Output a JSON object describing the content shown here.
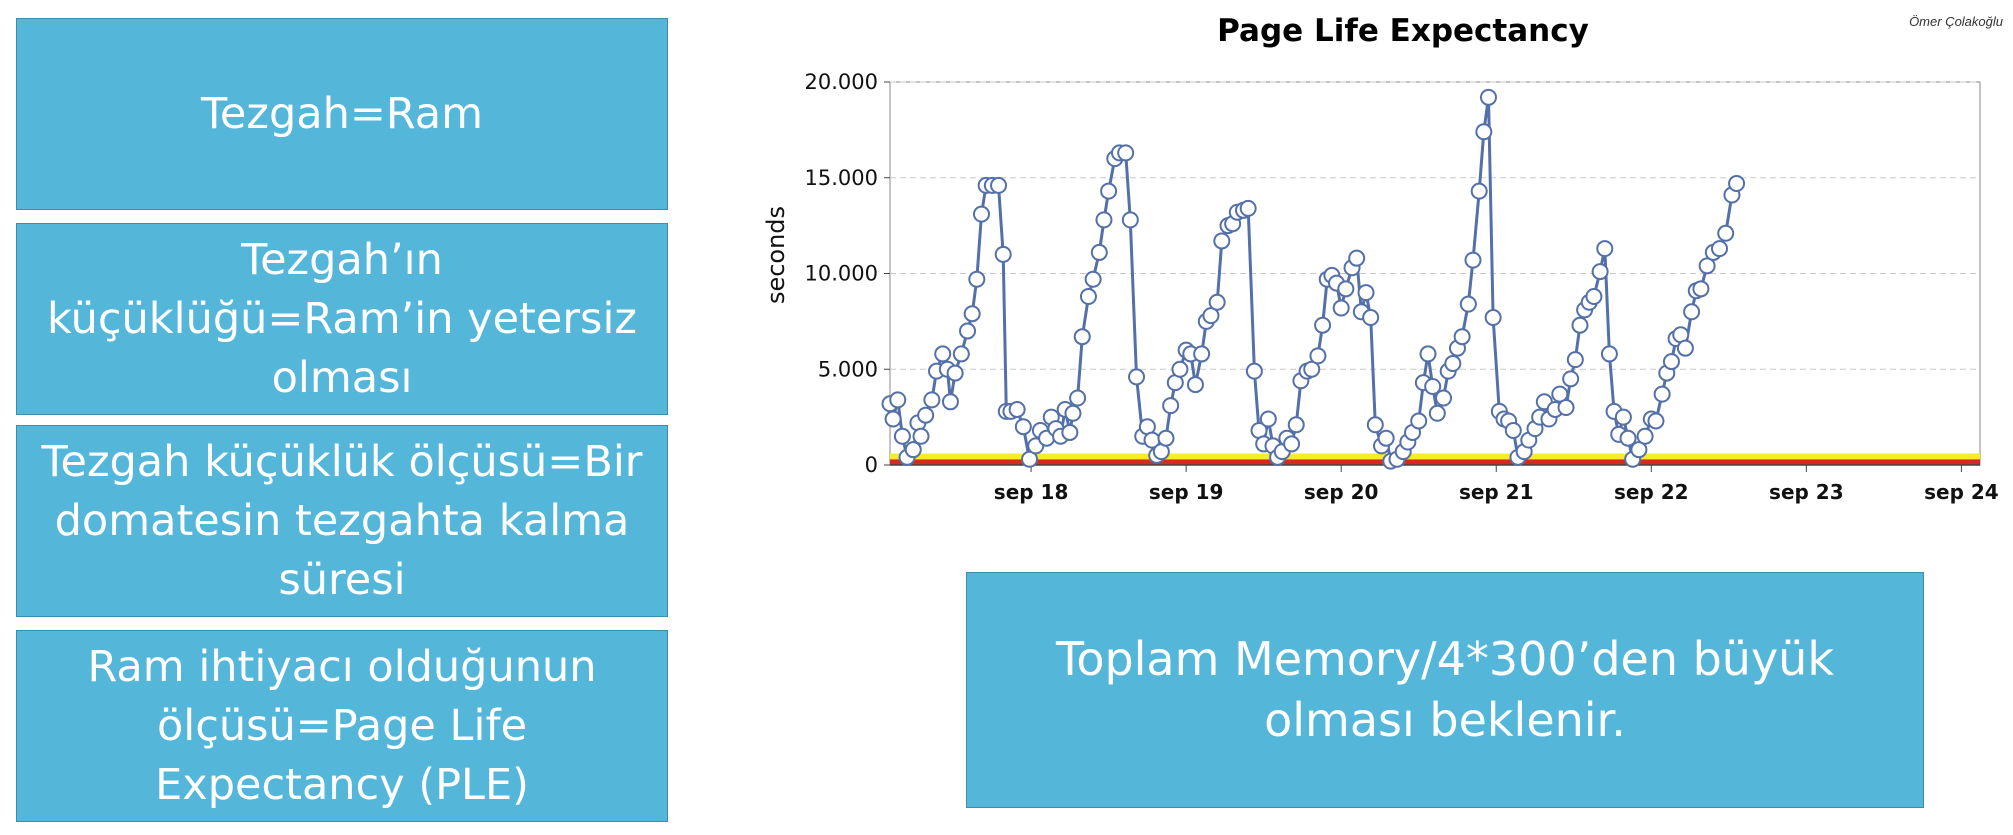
{
  "author": "Ömer Çolakoğlu",
  "boxes": {
    "b1": "Tezgah=Ram",
    "b2": "Tezgah’ın küçüklüğü=Ram’in yetersiz olması",
    "b3": "Tezgah küçüklük ölçüsü=Bir domatesin tezgahta kalma süresi",
    "b4": "Ram ihtiyacı olduğunun ölçüsü=Page Life Expectancy (PLE)",
    "b5": "Toplam Memory/4*300’den büyük olması beklenir."
  },
  "chart_data": {
    "type": "line",
    "title": "Page Life Expectancy",
    "xlabel": "",
    "ylabel": "seconds",
    "ylim": [
      0,
      20000
    ],
    "xlim": [
      17.09,
      24.12
    ],
    "yticks": [
      {
        "value": 0,
        "label": "0"
      },
      {
        "value": 5000,
        "label": "5.000"
      },
      {
        "value": 10000,
        "label": "10.000"
      },
      {
        "value": 15000,
        "label": "15.000"
      },
      {
        "value": 20000,
        "label": "20.000"
      }
    ],
    "xticks": [
      {
        "value": 18,
        "label": "sep 18"
      },
      {
        "value": 19,
        "label": "sep 19"
      },
      {
        "value": 20,
        "label": "sep 20"
      },
      {
        "value": 21,
        "label": "sep 21"
      },
      {
        "value": 22,
        "label": "sep 22"
      },
      {
        "value": 23,
        "label": "sep 23"
      },
      {
        "value": 24,
        "label": "sep 24"
      }
    ],
    "grid": true,
    "threshold_bands": [
      {
        "from": 0,
        "to": 300,
        "color": "#d62a1e"
      },
      {
        "from": 300,
        "to": 600,
        "color": "#f5ec2a"
      }
    ],
    "series_color": "#5470a8",
    "marker_fill": "#ffffff",
    "points": [
      [
        17.09,
        3200
      ],
      [
        17.11,
        2400
      ],
      [
        17.14,
        3400
      ],
      [
        17.17,
        1500
      ],
      [
        17.2,
        400
      ],
      [
        17.24,
        800
      ],
      [
        17.27,
        2200
      ],
      [
        17.29,
        1500
      ],
      [
        17.32,
        2600
      ],
      [
        17.36,
        3400
      ],
      [
        17.39,
        4900
      ],
      [
        17.43,
        5800
      ],
      [
        17.46,
        5000
      ],
      [
        17.48,
        3300
      ],
      [
        17.51,
        4800
      ],
      [
        17.55,
        5800
      ],
      [
        17.59,
        7000
      ],
      [
        17.62,
        7900
      ],
      [
        17.65,
        9700
      ],
      [
        17.68,
        13100
      ],
      [
        17.71,
        14600
      ],
      [
        17.75,
        14600
      ],
      [
        17.79,
        14600
      ],
      [
        17.82,
        11000
      ],
      [
        17.84,
        2800
      ],
      [
        17.87,
        2800
      ],
      [
        17.91,
        2900
      ],
      [
        17.95,
        2000
      ],
      [
        17.99,
        300
      ],
      [
        18.03,
        1000
      ],
      [
        18.06,
        1800
      ],
      [
        18.1,
        1400
      ],
      [
        18.13,
        2500
      ],
      [
        18.16,
        1900
      ],
      [
        18.19,
        1500
      ],
      [
        18.22,
        2900
      ],
      [
        18.25,
        1700
      ],
      [
        18.27,
        2700
      ],
      [
        18.3,
        3500
      ],
      [
        18.33,
        6700
      ],
      [
        18.37,
        8800
      ],
      [
        18.4,
        9700
      ],
      [
        18.44,
        11100
      ],
      [
        18.47,
        12800
      ],
      [
        18.5,
        14300
      ],
      [
        18.54,
        16000
      ],
      [
        18.57,
        16300
      ],
      [
        18.61,
        16300
      ],
      [
        18.64,
        12800
      ],
      [
        18.68,
        4600
      ],
      [
        18.72,
        1500
      ],
      [
        18.75,
        2000
      ],
      [
        18.78,
        1300
      ],
      [
        18.81,
        500
      ],
      [
        18.84,
        700
      ],
      [
        18.87,
        1400
      ],
      [
        18.9,
        3100
      ],
      [
        18.93,
        4300
      ],
      [
        18.96,
        5000
      ],
      [
        19.0,
        6000
      ],
      [
        19.03,
        5800
      ],
      [
        19.06,
        4200
      ],
      [
        19.1,
        5800
      ],
      [
        19.13,
        7500
      ],
      [
        19.16,
        7800
      ],
      [
        19.2,
        8500
      ],
      [
        19.23,
        11700
      ],
      [
        19.27,
        12500
      ],
      [
        19.3,
        12600
      ],
      [
        19.33,
        13200
      ],
      [
        19.37,
        13300
      ],
      [
        19.4,
        13400
      ],
      [
        19.44,
        4900
      ],
      [
        19.47,
        1800
      ],
      [
        19.5,
        1100
      ],
      [
        19.53,
        2400
      ],
      [
        19.56,
        1000
      ],
      [
        19.59,
        400
      ],
      [
        19.62,
        700
      ],
      [
        19.65,
        1400
      ],
      [
        19.68,
        1100
      ],
      [
        19.71,
        2100
      ],
      [
        19.74,
        4400
      ],
      [
        19.78,
        4900
      ],
      [
        19.81,
        5000
      ],
      [
        19.85,
        5700
      ],
      [
        19.88,
        7300
      ],
      [
        19.91,
        9700
      ],
      [
        19.94,
        9900
      ],
      [
        19.97,
        9500
      ],
      [
        20.0,
        8200
      ],
      [
        20.03,
        9200
      ],
      [
        20.07,
        10300
      ],
      [
        20.1,
        10800
      ],
      [
        20.13,
        8000
      ],
      [
        20.16,
        9000
      ],
      [
        20.19,
        7700
      ],
      [
        20.22,
        2100
      ],
      [
        20.26,
        1000
      ],
      [
        20.29,
        1400
      ],
      [
        20.32,
        200
      ],
      [
        20.36,
        300
      ],
      [
        20.4,
        700
      ],
      [
        20.43,
        1200
      ],
      [
        20.46,
        1700
      ],
      [
        20.5,
        2300
      ],
      [
        20.53,
        4300
      ],
      [
        20.56,
        5800
      ],
      [
        20.59,
        4100
      ],
      [
        20.62,
        2700
      ],
      [
        20.66,
        3500
      ],
      [
        20.69,
        4900
      ],
      [
        20.72,
        5300
      ],
      [
        20.75,
        6100
      ],
      [
        20.78,
        6700
      ],
      [
        20.82,
        8400
      ],
      [
        20.85,
        10700
      ],
      [
        20.89,
        14300
      ],
      [
        20.92,
        17400
      ],
      [
        20.95,
        19200
      ],
      [
        20.98,
        7700
      ],
      [
        21.02,
        2800
      ],
      [
        21.05,
        2400
      ],
      [
        21.08,
        2300
      ],
      [
        21.11,
        1800
      ],
      [
        21.14,
        400
      ],
      [
        21.18,
        700
      ],
      [
        21.21,
        1300
      ],
      [
        21.25,
        1900
      ],
      [
        21.28,
        2500
      ],
      [
        21.31,
        3300
      ],
      [
        21.34,
        2400
      ],
      [
        21.38,
        2900
      ],
      [
        21.41,
        3700
      ],
      [
        21.45,
        3000
      ],
      [
        21.48,
        4500
      ],
      [
        21.51,
        5500
      ],
      [
        21.54,
        7300
      ],
      [
        21.57,
        8100
      ],
      [
        21.6,
        8500
      ],
      [
        21.63,
        8800
      ],
      [
        21.67,
        10100
      ],
      [
        21.7,
        11300
      ],
      [
        21.73,
        5800
      ],
      [
        21.76,
        2800
      ],
      [
        21.79,
        1600
      ],
      [
        21.82,
        2500
      ],
      [
        21.85,
        1400
      ],
      [
        21.88,
        300
      ],
      [
        21.92,
        800
      ],
      [
        21.96,
        1500
      ],
      [
        22.0,
        2400
      ],
      [
        22.03,
        2300
      ],
      [
        22.07,
        3700
      ],
      [
        22.1,
        4800
      ],
      [
        22.13,
        5400
      ],
      [
        22.16,
        6600
      ],
      [
        22.19,
        6800
      ],
      [
        22.22,
        6100
      ],
      [
        22.26,
        8000
      ],
      [
        22.29,
        9100
      ],
      [
        22.32,
        9200
      ],
      [
        22.36,
        10400
      ],
      [
        22.4,
        11100
      ],
      [
        22.44,
        11300
      ],
      [
        22.48,
        12100
      ],
      [
        22.52,
        14100
      ],
      [
        22.55,
        14700
      ]
    ]
  }
}
